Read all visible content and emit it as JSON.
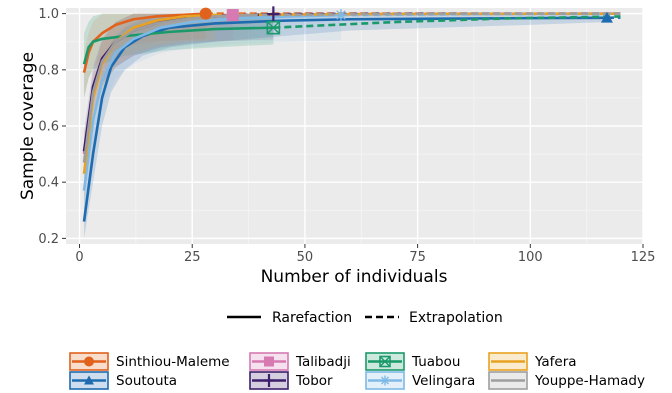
{
  "chart_data": {
    "type": "line",
    "xlabel": "Number of individuals",
    "ylabel": "Sample coverage",
    "xlim": [
      -3,
      125
    ],
    "ylim": [
      0.18,
      1.02
    ],
    "x_ticks": [
      0,
      25,
      50,
      75,
      100,
      125
    ],
    "y_ticks": [
      0.2,
      0.4,
      0.6,
      0.8,
      1.0
    ],
    "x_tick_labels": [
      "0",
      "25",
      "50",
      "75",
      "100",
      "125"
    ],
    "y_tick_labels": [
      "0.2",
      "0.4",
      "0.6",
      "0.8",
      "1.0"
    ],
    "grid": true,
    "legend_placement": "bottom",
    "method_legend": [
      {
        "label": "Rarefaction",
        "dash": "solid"
      },
      {
        "label": "Extrapolation",
        "dash": "dashed"
      }
    ],
    "series": [
      {
        "name": "Sinthiou-Maleme",
        "color": "#e0621d",
        "marker": "circle",
        "x": [
          1,
          2,
          3,
          5,
          8,
          12,
          17,
          22,
          28
        ],
        "y": [
          0.79,
          0.86,
          0.9,
          0.93,
          0.96,
          0.98,
          0.99,
          0.995,
          1.0
        ],
        "ext_x": [
          28,
          60,
          120
        ],
        "ext_y": [
          1.0,
          1.0,
          1.0
        ]
      },
      {
        "name": "Soutouta",
        "color": "#1f6bb0",
        "marker": "triangle",
        "x": [
          1,
          3,
          5,
          7,
          10,
          14,
          20,
          30,
          45,
          60,
          80,
          100,
          117
        ],
        "y": [
          0.26,
          0.5,
          0.7,
          0.81,
          0.88,
          0.92,
          0.95,
          0.965,
          0.975,
          0.98,
          0.982,
          0.984,
          0.985
        ],
        "ext_x": [
          117,
          120
        ],
        "ext_y": [
          0.985,
          0.986
        ],
        "band_lo": [
          0.2,
          0.4,
          0.6,
          0.72,
          0.8,
          0.85,
          0.88,
          0.9,
          0.92,
          0.94,
          0.95,
          0.96,
          0.97
        ],
        "band_hi": [
          0.36,
          0.62,
          0.8,
          0.9,
          0.95,
          0.98,
          0.99,
          1.0,
          1.0,
          1.0,
          1.0,
          1.0,
          1.0
        ]
      },
      {
        "name": "Talibadji",
        "color": "#d67ab1",
        "marker": "square",
        "x": [
          1,
          3,
          5,
          8,
          12,
          17,
          23,
          28,
          34
        ],
        "y": [
          0.5,
          0.72,
          0.83,
          0.9,
          0.94,
          0.97,
          0.985,
          0.99,
          0.995
        ],
        "ext_x": [
          34,
          70,
          120
        ],
        "ext_y": [
          0.995,
          0.998,
          1.0
        ]
      },
      {
        "name": "Tobor",
        "color": "#3d1f6b",
        "marker": "cross",
        "x": [
          1,
          3,
          5,
          8,
          12,
          18,
          25,
          33,
          43
        ],
        "y": [
          0.51,
          0.74,
          0.84,
          0.9,
          0.94,
          0.97,
          0.985,
          0.993,
          0.998
        ],
        "ext_x": [
          43,
          80,
          120
        ],
        "ext_y": [
          0.998,
          1.0,
          1.0
        ]
      },
      {
        "name": "Tuabou",
        "color": "#1a9a6a",
        "marker": "boxcross",
        "x": [
          1,
          2,
          3,
          5,
          10,
          20,
          30,
          43
        ],
        "y": [
          0.82,
          0.88,
          0.9,
          0.91,
          0.92,
          0.935,
          0.945,
          0.95
        ],
        "ext_x": [
          43,
          70,
          95,
          120
        ],
        "ext_y": [
          0.95,
          0.97,
          0.983,
          0.99
        ],
        "band_lo": [
          0.7,
          0.77,
          0.8,
          0.82,
          0.85,
          0.87,
          0.88,
          0.89
        ],
        "band_hi": [
          0.93,
          0.97,
          0.99,
          1.0,
          1.0,
          1.0,
          1.0,
          1.0
        ]
      },
      {
        "name": "Velingara",
        "color": "#7fb9e6",
        "marker": "asterisk",
        "x": [
          1,
          3,
          5,
          8,
          12,
          18,
          25,
          35,
          47,
          58
        ],
        "y": [
          0.37,
          0.62,
          0.76,
          0.86,
          0.91,
          0.95,
          0.97,
          0.983,
          0.99,
          0.995
        ],
        "ext_x": [
          58,
          90,
          120
        ],
        "ext_y": [
          0.995,
          0.998,
          1.0
        ]
      },
      {
        "name": "Yafera",
        "color": "#e8a221",
        "marker": "none",
        "x": [
          1,
          3,
          5,
          8,
          12,
          17,
          23,
          30
        ],
        "y": [
          0.43,
          0.7,
          0.82,
          0.9,
          0.95,
          0.975,
          0.99,
          0.995
        ],
        "ext_x": [
          30,
          70,
          120
        ],
        "ext_y": [
          0.995,
          0.999,
          1.0
        ]
      },
      {
        "name": "Youppe-Hamady",
        "color": "#9e9e9e",
        "marker": "none",
        "x": [
          1,
          3,
          5,
          8,
          12,
          17,
          23,
          30,
          38
        ],
        "y": [
          0.47,
          0.72,
          0.83,
          0.9,
          0.94,
          0.965,
          0.98,
          0.99,
          0.995
        ],
        "ext_x": [
          38,
          80,
          120
        ],
        "ext_y": [
          0.995,
          0.999,
          1.0
        ]
      }
    ]
  }
}
